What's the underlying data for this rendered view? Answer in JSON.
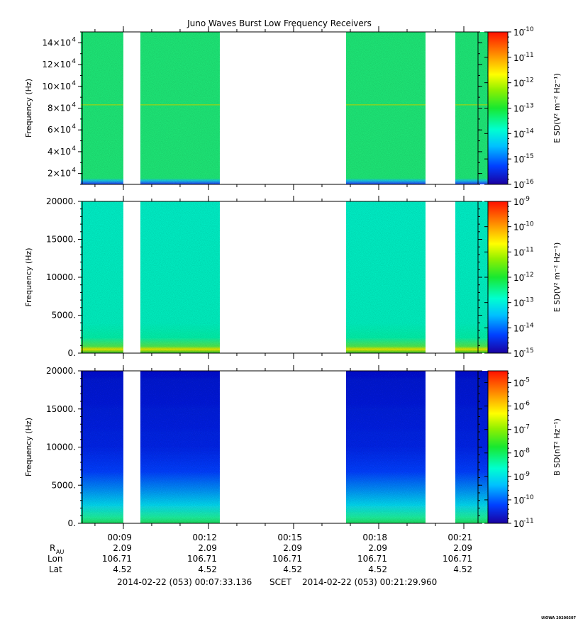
{
  "chart_data": {
    "type": "heatmap",
    "title": "Juno Waves Burst Low Frequency Receivers",
    "xlabel": "",
    "x_ticks": [
      "00:09",
      "00:12",
      "00:15",
      "00:18",
      "00:21"
    ],
    "time_range": [
      "2014-02-22 (053) 00:07:33.136",
      "2014-02-22 (053) 00:21:29.960"
    ],
    "time_system": "SCET",
    "data_intervals_min": [
      [
        7.5,
        9.0
      ],
      [
        9.6,
        12.4
      ],
      [
        16.85,
        19.65
      ],
      [
        20.7,
        22.05
      ]
    ],
    "panels": [
      {
        "ylabel": "Frequency (Hz)",
        "y_ticks": [
          {
            "value": 20000,
            "label": "2×10",
            "exp": "4"
          },
          {
            "value": 40000,
            "label": "4×10",
            "exp": "4"
          },
          {
            "value": 60000,
            "label": "6×10",
            "exp": "4"
          },
          {
            "value": 80000,
            "label": "8×10",
            "exp": "4"
          },
          {
            "value": 100000,
            "label": "10×10",
            "exp": "4"
          },
          {
            "value": 120000,
            "label": "12×10",
            "exp": "4"
          },
          {
            "value": 140000,
            "label": "14×10",
            "exp": "4"
          }
        ],
        "ylim": [
          10000,
          150000
        ],
        "colorbar_label": "E SD(V² m⁻² Hz⁻¹)",
        "colorbar_exps": [
          "-10",
          "-11",
          "-12",
          "-13",
          "-14",
          "-15",
          "-16"
        ],
        "colorbar_range": [
          -16,
          -10
        ],
        "dominant_level": -13.5,
        "line_at_hz": 83000,
        "low_band": "blue"
      },
      {
        "ylabel": "Frequency (Hz)",
        "y_ticks": [
          {
            "value": 0,
            "label": "0.",
            "exp": ""
          },
          {
            "value": 5000,
            "label": "5000.",
            "exp": ""
          },
          {
            "value": 10000,
            "label": "10000.",
            "exp": ""
          },
          {
            "value": 15000,
            "label": "15000.",
            "exp": ""
          },
          {
            "value": 20000,
            "label": "20000.",
            "exp": ""
          }
        ],
        "ylim": [
          0,
          20000
        ],
        "colorbar_label": "E SD(V² m⁻² Hz⁻¹)",
        "colorbar_exps": [
          "-9",
          "-10",
          "-11",
          "-12",
          "-13",
          "-14",
          "-15"
        ],
        "colorbar_range": [
          -15,
          -9
        ],
        "dominant_level": -12.8,
        "low_band": "yellow"
      },
      {
        "ylabel": "Frequency (Hz)",
        "y_ticks": [
          {
            "value": 0,
            "label": "0.",
            "exp": ""
          },
          {
            "value": 5000,
            "label": "5000.",
            "exp": ""
          },
          {
            "value": 10000,
            "label": "10000.",
            "exp": ""
          },
          {
            "value": 15000,
            "label": "15000.",
            "exp": ""
          },
          {
            "value": 20000,
            "label": "20000.",
            "exp": ""
          }
        ],
        "ylim": [
          0,
          20000
        ],
        "colorbar_label": "B SD(nT² Hz⁻¹)",
        "colorbar_exps": [
          "-5",
          "-6",
          "-7",
          "-8",
          "-9",
          "-10",
          "-11"
        ],
        "colorbar_range": [
          -11,
          -4.5
        ],
        "dominant_level": -10.5,
        "low_band": "cyan-green"
      }
    ],
    "ephemeris": {
      "row_labels": {
        "r": "R",
        "r_sub": "AU",
        "lon": "Lon",
        "lat": "Lat"
      },
      "r": [
        "2.09",
        "2.09",
        "2.09",
        "2.09",
        "2.09"
      ],
      "lon": [
        "106.71",
        "106.71",
        "106.71",
        "106.71",
        "106.71"
      ],
      "lat": [
        "4.52",
        "4.52",
        "4.52",
        "4.52",
        "4.52"
      ]
    },
    "footer_stamp": "UIOWA 20200307"
  }
}
